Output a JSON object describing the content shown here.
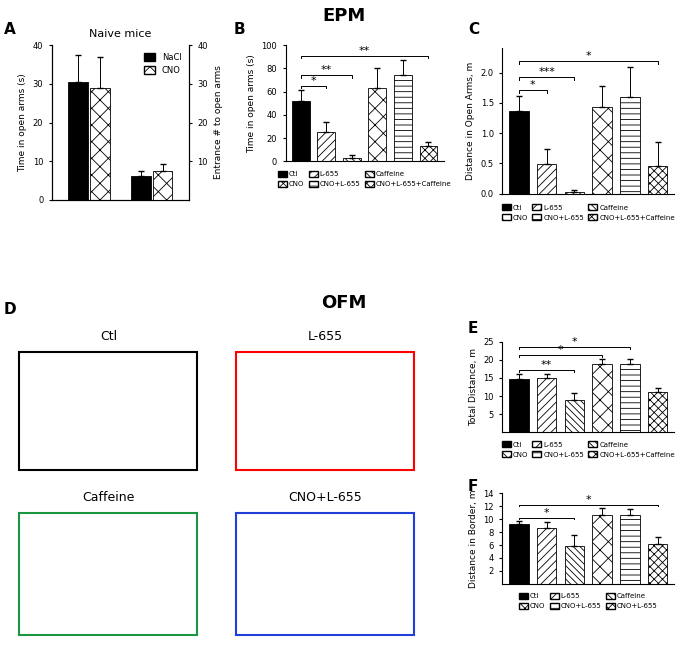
{
  "headings": [
    "EPM",
    "OFM"
  ],
  "panel_letters": [
    "A",
    "B",
    "C",
    "D",
    "E",
    "F"
  ],
  "chart_data": [
    {
      "type": "bar",
      "title": "Naive mice",
      "categories": [
        null,
        null
      ],
      "series": [
        {
          "name": "NaCl",
          "color": "#000000",
          "values": [
            30.5,
            null
          ],
          "errors": [
            7,
            null
          ]
        },
        {
          "name": "CNO",
          "color": "#ffffff",
          "values": [
            29,
            null
          ],
          "errors": [
            8,
            null
          ]
        },
        {
          "name": "NaCl",
          "color": "#000000",
          "values": [
            null,
            6.2
          ],
          "errors": [
            null,
            1.4
          ],
          "axis": "y2"
        },
        {
          "name": "CNO",
          "color": "#ffffff",
          "values": [
            null,
            7.5
          ],
          "errors": [
            null,
            1.8
          ],
          "axis": "y2"
        }
      ],
      "y_label": "Time in open arms (s)",
      "y2_label": "Entrance # to open arms",
      "ylim": [
        0,
        40
      ],
      "yticks": [
        0,
        10,
        20,
        30,
        40
      ],
      "y2lim": [
        0,
        40
      ],
      "y2ticks": [
        10,
        20,
        30,
        40
      ],
      "legend": "upper right",
      "tick_labels": "y"
    },
    {
      "type": "bar",
      "categories": [
        "Ctl",
        "L-655",
        "Caffeine",
        "CNO",
        "CNO+L-655",
        "CNO+L-655+Caffeine"
      ],
      "values": [
        52,
        25,
        3,
        63,
        74,
        13
      ],
      "errors": [
        9,
        9,
        2,
        17,
        13,
        4
      ],
      "colors": [
        "#000000",
        "#ffffff",
        "#ffffff",
        "#ffffff",
        "#ffffff",
        "#ffffff"
      ],
      "y_label": "Time in open arms (s)",
      "ylim": [
        0,
        100
      ],
      "yticks": [
        0,
        20,
        40,
        60,
        80,
        100
      ],
      "legend": "upper center",
      "tick_labels": "y",
      "significance": [
        {
          "pair": [
            0,
            1
          ],
          "label": "*"
        },
        {
          "pair": [
            0,
            2
          ],
          "label": "**"
        },
        {
          "pair": [
            0,
            5
          ],
          "label": "**"
        }
      ]
    },
    {
      "type": "bar",
      "categories": [
        "Ctl",
        "L-655",
        "Caffeine",
        "CNO",
        "CNO+L-655",
        "CNO+L-655+Caffeine"
      ],
      "values": [
        1.37,
        0.48,
        0.03,
        1.43,
        1.6,
        0.45
      ],
      "errors": [
        0.25,
        0.25,
        0.02,
        0.35,
        0.5,
        0.4
      ],
      "colors": [
        "#000000",
        "#ffffff",
        "#ffffff",
        "#ffffff",
        "#ffffff",
        "#ffffff"
      ],
      "y_label": "Distance in Open Arms, m",
      "ylim": [
        0,
        2.4
      ],
      "yticks": [
        0.0,
        0.5,
        1.0,
        1.5,
        2.0
      ],
      "legend": "upper center",
      "tick_labels": "y",
      "significance": [
        {
          "pair": [
            0,
            1
          ],
          "label": "*"
        },
        {
          "pair": [
            0,
            2
          ],
          "label": "***"
        },
        {
          "pair": [
            0,
            5
          ],
          "label": "*"
        }
      ]
    },
    {
      "type": "trajectories",
      "panels": [
        {
          "title": "Ctl",
          "color": "#000000"
        },
        {
          "title": "L-655",
          "color": "#ff0000"
        },
        {
          "title": "Caffeine",
          "color": "#1a9641"
        },
        {
          "title": "CNO+L-655",
          "color": "#1f3fd6"
        }
      ]
    },
    {
      "type": "bar",
      "categories": [
        "Ctl",
        "L-655",
        "Caffeine",
        "CNO",
        "CNO+L-655",
        "CNO+L-655+Caffeine"
      ],
      "values": [
        14.8,
        15,
        9,
        19,
        19,
        11
      ],
      "errors": [
        1.2,
        1.2,
        1.8,
        1.3,
        1.3,
        1.3
      ],
      "colors": [
        "#000000",
        "#ffffff",
        "#ffffff",
        "#ffffff",
        "#ffffff",
        "#ffffff"
      ],
      "y_label": "Total Distance, m",
      "ylim": [
        0,
        25
      ],
      "yticks": [
        5,
        10,
        15,
        20,
        25
      ],
      "legend": "upper center",
      "tick_labels": "y",
      "significance": [
        {
          "pair": [
            0,
            2
          ],
          "label": "**"
        },
        {
          "pair": [
            0,
            3
          ],
          "label": "*"
        },
        {
          "pair": [
            0,
            4
          ],
          "label": "*"
        }
      ]
    },
    {
      "type": "bar",
      "categories": [
        "Ctl",
        "L-655",
        "Caffeine",
        "CNO",
        "CNO+L-655",
        "CNO+L-655"
      ],
      "values": [
        9.2,
        8.7,
        5.9,
        10.6,
        10.6,
        6.1
      ],
      "errors": [
        0.5,
        0.8,
        1.6,
        1.1,
        1.0,
        1.1
      ],
      "colors": [
        "#000000",
        "#ffffff",
        "#ffffff",
        "#ffffff",
        "#ffffff",
        "#ffffff"
      ],
      "y_label": "Distance in Border, m",
      "ylim": [
        0,
        14
      ],
      "yticks": [
        2,
        4,
        6,
        8,
        10,
        12,
        14
      ],
      "legend": "upper center",
      "tick_labels": "y",
      "significance": [
        {
          "pair": [
            0,
            2
          ],
          "label": "*"
        },
        {
          "pair": [
            0,
            5
          ],
          "label": "*"
        }
      ]
    }
  ]
}
